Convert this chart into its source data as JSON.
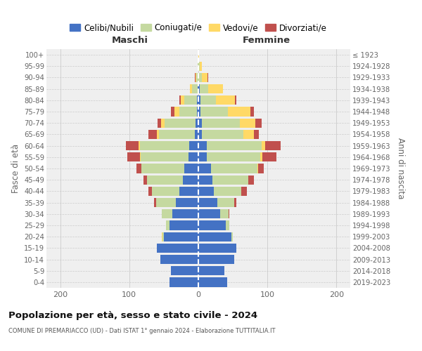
{
  "age_groups": [
    "0-4",
    "5-9",
    "10-14",
    "15-19",
    "20-24",
    "25-29",
    "30-34",
    "35-39",
    "40-44",
    "45-49",
    "50-54",
    "55-59",
    "60-64",
    "65-69",
    "70-74",
    "75-79",
    "80-84",
    "85-89",
    "90-94",
    "95-99",
    "100+"
  ],
  "birth_years": [
    "2019-2023",
    "2014-2018",
    "2009-2013",
    "2004-2008",
    "1999-2003",
    "1994-1998",
    "1989-1993",
    "1984-1988",
    "1979-1983",
    "1974-1978",
    "1969-1973",
    "1964-1968",
    "1959-1963",
    "1954-1958",
    "1949-1953",
    "1944-1948",
    "1939-1943",
    "1934-1938",
    "1929-1933",
    "1924-1928",
    "≤ 1923"
  ],
  "maschi": {
    "celibi": [
      42,
      40,
      55,
      60,
      50,
      42,
      38,
      33,
      27,
      22,
      20,
      14,
      13,
      5,
      4,
      2,
      2,
      1,
      0,
      0,
      0
    ],
    "coniugati": [
      0,
      0,
      0,
      0,
      2,
      5,
      15,
      28,
      40,
      52,
      62,
      70,
      72,
      52,
      45,
      25,
      18,
      8,
      3,
      1,
      0
    ],
    "vedovi": [
      0,
      0,
      0,
      0,
      1,
      0,
      0,
      0,
      0,
      0,
      0,
      1,
      2,
      3,
      5,
      8,
      5,
      3,
      1,
      0,
      0
    ],
    "divorziati": [
      0,
      0,
      0,
      0,
      0,
      0,
      0,
      3,
      5,
      5,
      8,
      18,
      18,
      12,
      5,
      5,
      2,
      0,
      1,
      0,
      0
    ]
  },
  "femmine": {
    "nubili": [
      42,
      38,
      52,
      55,
      48,
      40,
      32,
      27,
      22,
      20,
      18,
      12,
      12,
      5,
      5,
      3,
      3,
      2,
      0,
      0,
      0
    ],
    "coniugate": [
      0,
      0,
      0,
      0,
      2,
      5,
      12,
      25,
      40,
      52,
      68,
      78,
      80,
      60,
      55,
      40,
      22,
      12,
      5,
      2,
      0
    ],
    "vedove": [
      0,
      0,
      0,
      0,
      0,
      0,
      0,
      0,
      0,
      0,
      1,
      3,
      5,
      15,
      22,
      32,
      28,
      22,
      8,
      3,
      1
    ],
    "divorziate": [
      0,
      0,
      0,
      0,
      0,
      0,
      1,
      3,
      8,
      8,
      8,
      20,
      22,
      8,
      10,
      5,
      2,
      0,
      1,
      0,
      0
    ]
  },
  "colors": {
    "celibi": "#4472c4",
    "coniugati": "#c5d9a0",
    "vedovi": "#ffd966",
    "divorziati": "#c0504d"
  },
  "legend_labels": [
    "Celibi/Nubili",
    "Coniugati/e",
    "Vedovi/e",
    "Divorziati/e"
  ],
  "title": "Popolazione per età, sesso e stato civile - 2024",
  "subtitle": "COMUNE DI PREMARIACCO (UD) - Dati ISTAT 1° gennaio 2024 - Elaborazione TUTTITALIA.IT",
  "label_maschi": "Maschi",
  "label_femmine": "Femmine",
  "ylabel_left": "Fasce di età",
  "ylabel_right": "Anni di nascita",
  "xlim": 220,
  "xticks": [
    -200,
    -100,
    0,
    100,
    200
  ],
  "background_color": "#ffffff",
  "plot_bg": "#efefef",
  "grid_color": "#cccccc"
}
